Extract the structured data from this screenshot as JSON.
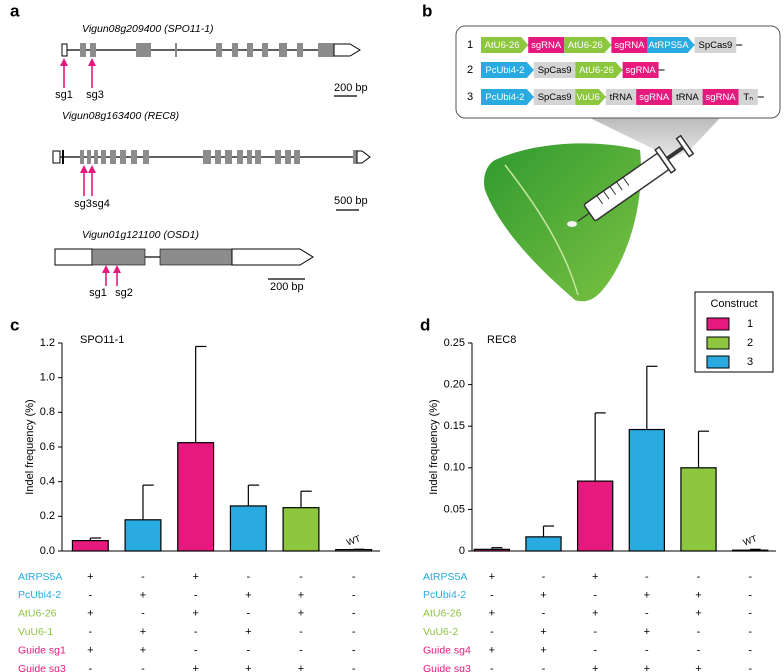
{
  "panel_labels": [
    "a",
    "b",
    "c",
    "d"
  ],
  "genes": [
    {
      "name": "Vigun08g209400 (SPO11-1)",
      "guides": [
        "sg1",
        "sg3"
      ],
      "scale": "200 bp"
    },
    {
      "name": "Vigun08g163400 (REC8)",
      "guides": [
        "sg3",
        "sg4"
      ],
      "scale": "500 bp"
    },
    {
      "name": "Vigun01g121100 (OSD1)",
      "guides": [
        "sg1",
        "sg2"
      ],
      "scale": "200 bp"
    }
  ],
  "constructs": [
    {
      "number": "1",
      "parts": [
        {
          "label": "AtU6-26",
          "color": "#8dc63f",
          "shape": "arrow"
        },
        {
          "label": "sgRNA",
          "color": "#e6197f",
          "shape": "box"
        },
        {
          "label": "AtU6-26",
          "color": "#8dc63f",
          "shape": "arrow"
        },
        {
          "label": "sgRNA",
          "color": "#e6197f",
          "shape": "box"
        },
        {
          "label": "AtRPS5A",
          "color": "#29abe2",
          "shape": "arrow"
        },
        {
          "label": "SpCas9",
          "color": "#d4d4d4",
          "shape": "box"
        }
      ]
    },
    {
      "number": "2",
      "parts": [
        {
          "label": "PcUbi4-2",
          "color": "#29abe2",
          "shape": "arrow"
        },
        {
          "label": "SpCas9",
          "color": "#d4d4d4",
          "shape": "box"
        },
        {
          "label": "AtU6-26",
          "color": "#8dc63f",
          "shape": "arrow"
        },
        {
          "label": "sgRNA",
          "color": "#e6197f",
          "shape": "box"
        }
      ]
    },
    {
      "number": "3",
      "parts": [
        {
          "label": "PcUbi4-2",
          "color": "#29abe2",
          "shape": "arrow"
        },
        {
          "label": "SpCas9",
          "color": "#d4d4d4",
          "shape": "box"
        },
        {
          "label": "VuU6",
          "color": "#8dc63f",
          "shape": "arrow"
        },
        {
          "label": "tRNA",
          "color": "#d4d4d4",
          "shape": "box"
        },
        {
          "label": "sgRNA",
          "color": "#e6197f",
          "shape": "box"
        },
        {
          "label": "tRNA",
          "color": "#d4d4d4",
          "shape": "box"
        },
        {
          "label": "sgRNA",
          "color": "#e6197f",
          "shape": "box"
        },
        {
          "label": "Tₙ",
          "color": "#d4d4d4",
          "shape": "box"
        }
      ]
    }
  ],
  "chart_data": [
    {
      "type": "bar",
      "title": "SPO11-1",
      "y_label": "Indel frequency (%)",
      "categories": [
        null,
        null,
        null,
        null,
        null,
        null
      ],
      "values": [
        0.06,
        0.18,
        0.625,
        0.26,
        0.25,
        0.008
      ],
      "errors": [
        0.015,
        0.2,
        0.555,
        0.12,
        0.095,
        0.002
      ],
      "colors": [
        "#e6197f",
        "#29abe2",
        "#e6197f",
        "#29abe2",
        "#8dc63f",
        "#ffffff"
      ],
      "annotation": "WT",
      "ylim": [
        0,
        1.2
      ],
      "yticks": [
        {
          "value": 0,
          "label": "0.0"
        },
        0.2,
        0.4,
        0.6,
        0.8,
        {
          "value": 1,
          "label": "1.0"
        },
        1.2
      ],
      "table": [
        {
          "label": "AtRPS5A",
          "color": "#29abe2",
          "marks": [
            "+",
            "-",
            "+",
            "-",
            "-",
            "-"
          ]
        },
        {
          "label": "PcUbi4-2",
          "color": "#29abe2",
          "marks": [
            "-",
            "+",
            "-",
            "+",
            "+",
            "-"
          ]
        },
        {
          "label": "AtU6-26",
          "color": "#8dc63f",
          "marks": [
            "+",
            "-",
            "+",
            "-",
            "+",
            "-"
          ]
        },
        {
          "label": "VuU6-1",
          "color": "#8dc63f",
          "marks": [
            "-",
            "+",
            "-",
            "+",
            "-",
            "-"
          ]
        },
        {
          "label": "Guide sg1",
          "color": "#e6197f",
          "marks": [
            "+",
            "+",
            "-",
            "-",
            "-",
            "-"
          ]
        },
        {
          "label": "Guide sg3",
          "color": "#e6197f",
          "marks": [
            "-",
            "-",
            "+",
            "+",
            "+",
            "-"
          ]
        }
      ]
    },
    {
      "type": "bar",
      "title": "REC8",
      "y_label": "Indel frequency (%)",
      "categories": [
        null,
        null,
        null,
        null,
        null,
        null
      ],
      "values": [
        0.002,
        0.017,
        0.084,
        0.146,
        0.1,
        0.001
      ],
      "errors": [
        0.002,
        0.013,
        0.082,
        0.076,
        0.044,
        0.001
      ],
      "colors": [
        "#e6197f",
        "#29abe2",
        "#e6197f",
        "#29abe2",
        "#8dc63f",
        "#ffffff"
      ],
      "annotation": "WT",
      "ylim": [
        0,
        0.25
      ],
      "yticks": [
        0,
        0.05,
        {
          "value": 0.1,
          "label": "0.10"
        },
        0.15,
        {
          "value": 0.2,
          "label": "0.20"
        },
        0.25
      ],
      "legend": {
        "title": "Construct",
        "entries": [
          {
            "name": "1",
            "color": "#e6197f"
          },
          {
            "name": "2",
            "color": "#8dc63f"
          },
          {
            "name": "3",
            "color": "#29abe2"
          }
        ]
      },
      "table": [
        {
          "label": "AtRPS5A",
          "color": "#29abe2",
          "marks": [
            "+",
            "-",
            "+",
            "-",
            "-",
            "-"
          ]
        },
        {
          "label": "PcUbi4-2",
          "color": "#29abe2",
          "marks": [
            "-",
            "+",
            "-",
            "+",
            "+",
            "-"
          ]
        },
        {
          "label": "AtU6-26",
          "color": "#8dc63f",
          "marks": [
            "+",
            "-",
            "+",
            "-",
            "+",
            "-"
          ]
        },
        {
          "label": "VuU6-2",
          "color": "#8dc63f",
          "marks": [
            "-",
            "+",
            "-",
            "+",
            "-",
            "-"
          ]
        },
        {
          "label": "Guide sg4",
          "color": "#e6197f",
          "marks": [
            "+",
            "+",
            "-",
            "-",
            "-",
            "-"
          ]
        },
        {
          "label": "Guide sg3",
          "color": "#e6197f",
          "marks": [
            "-",
            "-",
            "+",
            "+",
            "+",
            "-"
          ]
        }
      ]
    }
  ]
}
